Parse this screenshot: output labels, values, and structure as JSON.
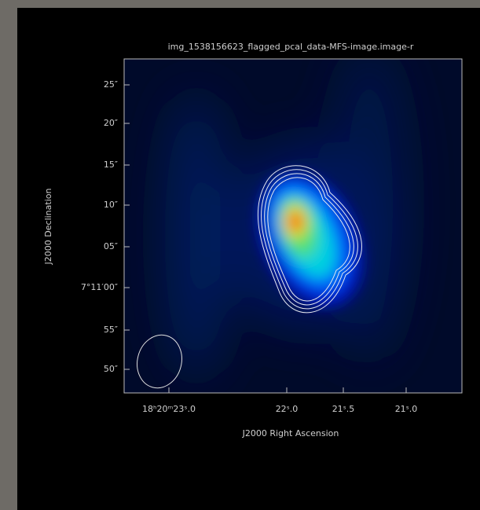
{
  "plot": {
    "title": "img_1538156623_flagged_pcal_data-MFS-image.image-r",
    "y_axis": {
      "label": "J2000 Declination",
      "ticks": [
        "25″",
        "20″",
        "15″",
        "10″",
        "05″",
        "7°11′00″",
        "55″",
        "50″"
      ]
    },
    "x_axis": {
      "label": "J2000 Right Ascension",
      "ticks": [
        "18ʰ20ᵐ23ˢ.0",
        "22ˢ.0",
        "21ˢ.5",
        "21ˢ.0"
      ]
    }
  }
}
